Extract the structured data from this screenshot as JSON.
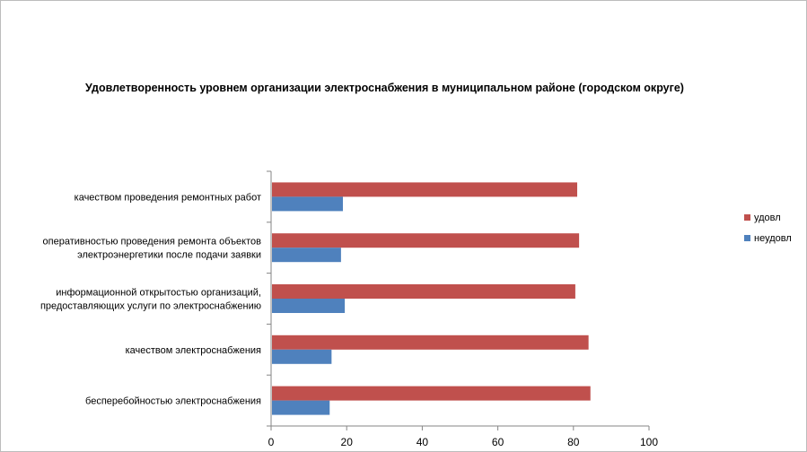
{
  "chart_data": {
    "type": "bar",
    "orientation": "horizontal",
    "title": "Удовлетворенность уровнем организации электроснабжения в муниципальном районе (городском округе)",
    "categories": [
      [
        "качеством  проведения  ремонтных  работ"
      ],
      [
        "оперативностью  проведения  ремонта  объектов",
        "электроэнергетики  после подачи  заявки"
      ],
      [
        "информационной  открытостью  организаций,",
        "предоставляющих  услуги  по электроснабжению"
      ],
      [
        "качеством  электроснабжения"
      ],
      [
        "бесперебойностью  электроснабжения"
      ]
    ],
    "series": [
      {
        "name": "удовл",
        "color": "#c0504d",
        "values": [
          81,
          81.5,
          80.5,
          84,
          84.5
        ]
      },
      {
        "name": "неудовл",
        "color": "#4f81bd",
        "values": [
          19,
          18.5,
          19.5,
          16,
          15.5
        ]
      }
    ],
    "xlim": [
      0,
      100
    ],
    "xticks": [
      0,
      20,
      40,
      60,
      80,
      100
    ],
    "grid": false,
    "legend_position": "right"
  }
}
